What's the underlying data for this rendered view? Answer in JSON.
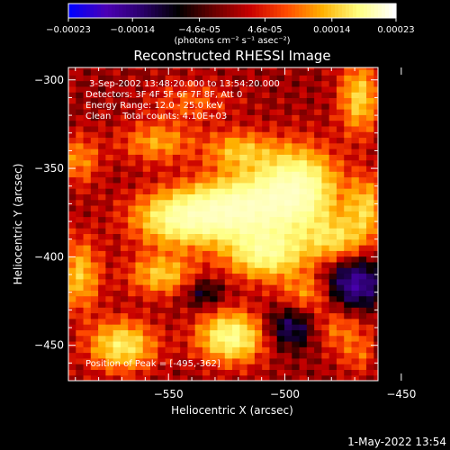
{
  "colorbar": {
    "ticks": [
      "-0.00023",
      "-0.00014",
      "-4.6e-05",
      "4.6e-05",
      "0.00014",
      "0.00023"
    ],
    "tick_values": [
      -0.00023,
      -0.00014,
      -4.6e-05,
      4.6e-05,
      0.00014,
      0.00023
    ],
    "range": [
      -0.00023,
      0.00023
    ],
    "units_text": "(photons cm⁻² s⁻¹ asec⁻²)",
    "colors": [
      "#0000ff",
      "#4b00b4",
      "#2a006a",
      "#000000",
      "#6a0000",
      "#c80000",
      "#ff4a00",
      "#ffb000",
      "#ffff80",
      "#ffffff"
    ]
  },
  "chart_data": {
    "type": "heatmap",
    "title": "Reconstructed RHESSI Image",
    "xlabel": "Heliocentric X (arcsec)",
    "ylabel": "Heliocentric Y (arcsec)",
    "xlim": [
      -593,
      -460
    ],
    "ylim": [
      -470,
      -293
    ],
    "xticks": [
      -550,
      -500,
      -450
    ],
    "xtick_labels": [
      "-550",
      "-500",
      "-450"
    ],
    "yticks": [
      -300,
      -350,
      -400,
      -450
    ],
    "ytick_labels": [
      "-300",
      "-350",
      "-400",
      "-450"
    ],
    "annotations": [
      "3-Sep-2002 13:48:20.000 to 13:54:20.000",
      "Detectors: 3F 4F 5F 6F 7F 8F, Att 0",
      "Energy Range: 12.0 - 25.0 keV",
      "Clean    Total counts: 4.10E+03"
    ],
    "peak_label": "Position of Peak = [-495,-362]",
    "peak": [
      -495,
      -362
    ],
    "grid": false,
    "blobs": [
      {
        "x": -495,
        "y": -362,
        "sx": 12,
        "sy": 16,
        "amp": 1.0
      },
      {
        "x": -520,
        "y": -372,
        "sx": 14,
        "sy": 12,
        "amp": 0.9
      },
      {
        "x": -545,
        "y": -378,
        "sx": 14,
        "sy": 11,
        "amp": 0.8
      },
      {
        "x": -508,
        "y": -398,
        "sx": 12,
        "sy": 10,
        "amp": 0.75
      },
      {
        "x": -478,
        "y": -390,
        "sx": 9,
        "sy": 9,
        "amp": 0.5
      },
      {
        "x": -555,
        "y": -335,
        "sx": 11,
        "sy": 8,
        "amp": 0.4
      },
      {
        "x": -520,
        "y": -340,
        "sx": 10,
        "sy": 8,
        "amp": 0.45
      },
      {
        "x": -468,
        "y": -310,
        "sx": 6,
        "sy": 14,
        "amp": 0.55
      },
      {
        "x": -465,
        "y": -372,
        "sx": 6,
        "sy": 12,
        "amp": 0.5
      },
      {
        "x": -523,
        "y": -445,
        "sx": 10,
        "sy": 10,
        "amp": 0.8
      },
      {
        "x": -570,
        "y": -450,
        "sx": 10,
        "sy": 10,
        "amp": 0.65
      },
      {
        "x": -553,
        "y": -410,
        "sx": 10,
        "sy": 8,
        "amp": 0.5
      },
      {
        "x": -588,
        "y": -345,
        "sx": 6,
        "sy": 10,
        "amp": 0.35
      },
      {
        "x": -588,
        "y": -410,
        "sx": 6,
        "sy": 14,
        "amp": 0.5
      },
      {
        "x": -478,
        "y": -440,
        "sx": 9,
        "sy": 8,
        "amp": 0.3
      },
      {
        "x": -465,
        "y": -455,
        "sx": 8,
        "sy": 8,
        "amp": 0.3
      },
      {
        "x": -540,
        "y": -312,
        "sx": 12,
        "sy": 8,
        "amp": 0.25
      },
      {
        "x": -490,
        "y": -420,
        "sx": 8,
        "sy": 8,
        "amp": 0.35
      }
    ],
    "negative_regions": [
      {
        "x": -470,
        "y": -415,
        "sx": 9,
        "sy": 10,
        "amp": 0.6
      },
      {
        "x": -450,
        "y": -455,
        "sx": 8,
        "sy": 8,
        "amp": 0.55
      },
      {
        "x": -497,
        "y": -440,
        "sx": 8,
        "sy": 8,
        "amp": 0.45
      },
      {
        "x": -535,
        "y": -420,
        "sx": 6,
        "sy": 6,
        "amp": 0.3
      }
    ]
  },
  "footer": {
    "timestamp": "1-May-2022 13:54"
  }
}
